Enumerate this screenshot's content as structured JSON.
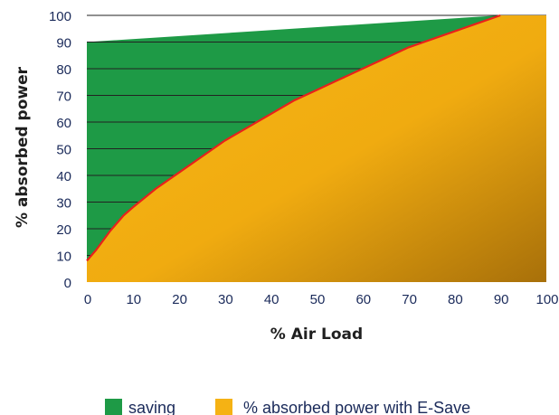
{
  "chart_data": {
    "type": "area",
    "xlabel": "% Air Load",
    "ylabel": "% absorbed power",
    "xlim": [
      0,
      100
    ],
    "ylim": [
      0,
      100
    ],
    "x_ticks": [
      "0",
      "10",
      "20",
      "30",
      "40",
      "50",
      "60",
      "70",
      "80",
      "90",
      "100"
    ],
    "y_ticks": [
      "0",
      "10",
      "20",
      "30",
      "40",
      "50",
      "60",
      "70",
      "80",
      "90",
      "100"
    ],
    "grid": "horizontal",
    "legend_position": "bottom",
    "series": [
      {
        "name": "saving",
        "color": "#1e9a46",
        "x": [
          0,
          90
        ],
        "y": [
          90,
          100
        ]
      },
      {
        "name": "% absorbed power with E-Save",
        "color": "#f5b214",
        "line_color": "#e8211c",
        "x": [
          0,
          2,
          5,
          8,
          10,
          15,
          20,
          25,
          30,
          35,
          40,
          45,
          50,
          55,
          60,
          65,
          70,
          75,
          80,
          85,
          90
        ],
        "y": [
          8,
          12,
          19,
          25,
          28,
          35,
          41,
          47,
          53,
          58,
          63,
          68,
          72,
          76,
          80,
          84,
          88,
          91,
          94,
          97,
          100
        ]
      }
    ]
  }
}
